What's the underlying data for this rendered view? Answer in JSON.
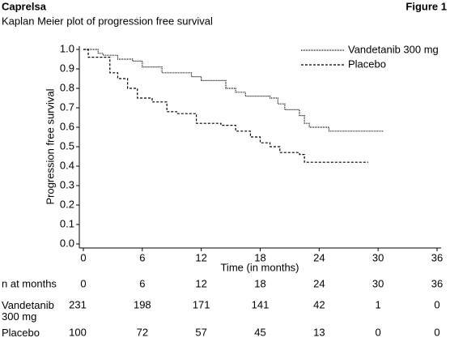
{
  "chart_data": {
    "type": "step",
    "header": "Caprelsa",
    "figure_label": "Figure 1",
    "title": "Kaplan Meier plot of progression free survival",
    "x_label": "Time (in months)",
    "y_label": "Progression free survival",
    "xlim": [
      0,
      36
    ],
    "ylim": [
      0,
      1
    ],
    "xticks": [
      0,
      6,
      12,
      18,
      24,
      30,
      36
    ],
    "yticks": [
      {
        "value": 0,
        "label": "0.0"
      },
      0.1,
      0.2,
      0.3,
      0.4,
      0.5,
      0.6,
      0.7,
      0.8,
      0.9,
      {
        "value": 1,
        "label": "1.0"
      }
    ],
    "legend": "top-right",
    "series": [
      {
        "name": "Vandetanib 300 mg",
        "color": "#000000",
        "line_style": "dotted",
        "x": [
          0,
          1.5,
          2,
          3.5,
          5,
          6,
          8,
          11,
          12,
          14.5,
          15.5,
          16.5,
          19,
          19.8,
          20.5,
          22,
          22.5,
          23,
          25,
          30.5
        ],
        "values": [
          1,
          0.98,
          0.97,
          0.95,
          0.94,
          0.91,
          0.88,
          0.86,
          0.84,
          0.8,
          0.78,
          0.76,
          0.75,
          0.72,
          0.69,
          0.66,
          0.62,
          0.6,
          0.58,
          0.58
        ]
      },
      {
        "name": "Placebo",
        "color": "#000000",
        "line_style": "dashed",
        "x": [
          0,
          0.5,
          2.7,
          3.5,
          4.5,
          5.5,
          7,
          8.5,
          9.5,
          11.5,
          14,
          15.5,
          17,
          18,
          19,
          20,
          22,
          22.5,
          29
        ],
        "values": [
          1,
          0.96,
          0.88,
          0.85,
          0.8,
          0.75,
          0.73,
          0.68,
          0.67,
          0.62,
          0.61,
          0.58,
          0.55,
          0.52,
          0.5,
          0.47,
          0.46,
          0.42,
          0.42
        ]
      }
    ],
    "risk_table": {
      "header": "n at months",
      "times": [
        0,
        6,
        12,
        18,
        24,
        30,
        36
      ],
      "rows": [
        {
          "name": "Vandetanib 300 mg",
          "values": [
            231,
            198,
            171,
            141,
            42,
            1,
            0
          ]
        },
        {
          "name": "Placebo",
          "values": [
            100,
            72,
            57,
            45,
            13,
            0,
            0
          ]
        }
      ]
    }
  }
}
